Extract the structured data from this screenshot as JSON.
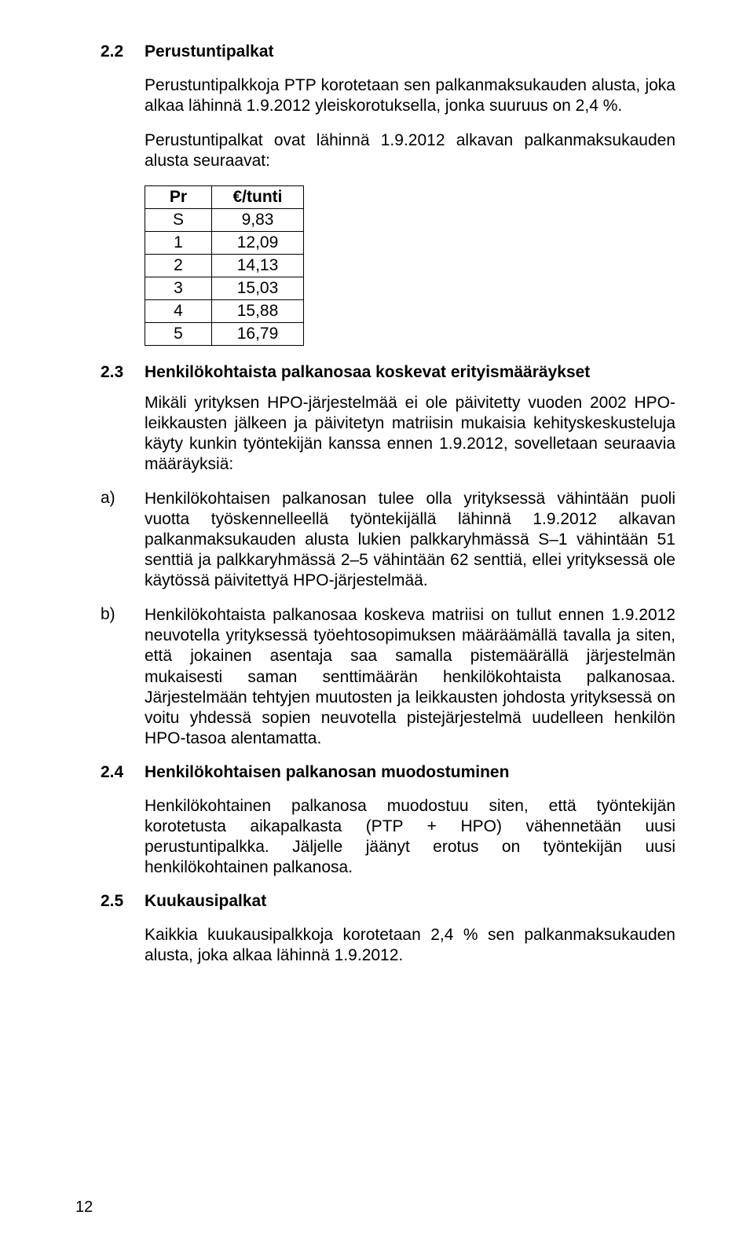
{
  "sections": {
    "s22": {
      "number": "2.2",
      "title": "Perustuntipalkat",
      "p1": "Perustuntipalkkoja PTP korotetaan sen palkanmaksukauden alusta, joka alkaa lähinnä 1.9.2012 yleiskorotuksella, jonka suuruus on 2,4 %.",
      "p2": "Perustuntipalkat ovat lähinnä 1.9.2012 alkavan palkanmaksukauden alusta seuraavat:"
    },
    "table": {
      "header": {
        "c1": "Pr",
        "c2": "€/tunti"
      },
      "rows": [
        {
          "c1": "S",
          "c2": "9,83"
        },
        {
          "c1": "1",
          "c2": "12,09"
        },
        {
          "c1": "2",
          "c2": "14,13"
        },
        {
          "c1": "3",
          "c2": "15,03"
        },
        {
          "c1": "4",
          "c2": "15,88"
        },
        {
          "c1": "5",
          "c2": "16,79"
        }
      ]
    },
    "s23": {
      "number": "2.3",
      "title": "Henkilökohtaista palkanosaa koskevat erityismääräykset",
      "p1": "Mikäli yrityksen HPO-järjestelmää ei ole päivitetty vuoden 2002 HPO-leikkausten jälkeen ja päivitetyn matriisin mukaisia kehityskeskusteluja käyty kunkin työntekijän kanssa ennen 1.9.2012, sovelletaan seuraavia määräyksiä:",
      "a_label": "a)",
      "a_text": "Henkilökohtaisen palkanosan tulee olla yrityksessä vähintään puoli vuotta työskennelleellä työntekijällä lähinnä 1.9.2012 alkavan palkanmaksukauden alusta lukien palkkaryhmässä S–1 vähintään 51 senttiä ja palkkaryhmässä 2–5 vähintään 62 senttiä, ellei yrityksessä ole käytössä päivitettyä HPO-järjestelmää.",
      "b_label": "b)",
      "b_text": "Henkilökohtaista palkanosaa koskeva matriisi on tullut ennen 1.9.2012 neuvotella yrityksessä työehtosopimuksen määräämällä tavalla ja siten, että jokainen asentaja saa samalla pistemäärällä järjestelmän mukaisesti saman senttimäärän henkilökohtaista palkanosaa. Järjestelmään tehtyjen muutosten ja leikkausten johdosta yrityksessä on voitu yhdessä sopien neuvotella pistejärjestelmä uudelleen henkilön HPO-tasoa alentamatta."
    },
    "s24": {
      "number": "2.4",
      "title": "Henkilökohtaisen palkanosan muodostuminen",
      "p1": "Henkilökohtainen palkanosa muodostuu siten, että työntekijän korotetusta aikapalkasta (PTP + HPO) vähennetään uusi perustuntipalkka. Jäljelle jäänyt erotus on työntekijän uusi henkilökohtainen palkanosa."
    },
    "s25": {
      "number": "2.5",
      "title": "Kuukausipalkat",
      "p1": "Kaikkia kuukausipalkkoja korotetaan 2,4 % sen palkanmaksukauden alusta, joka alkaa lähinnä 1.9.2012."
    }
  },
  "pageNumber": "12"
}
